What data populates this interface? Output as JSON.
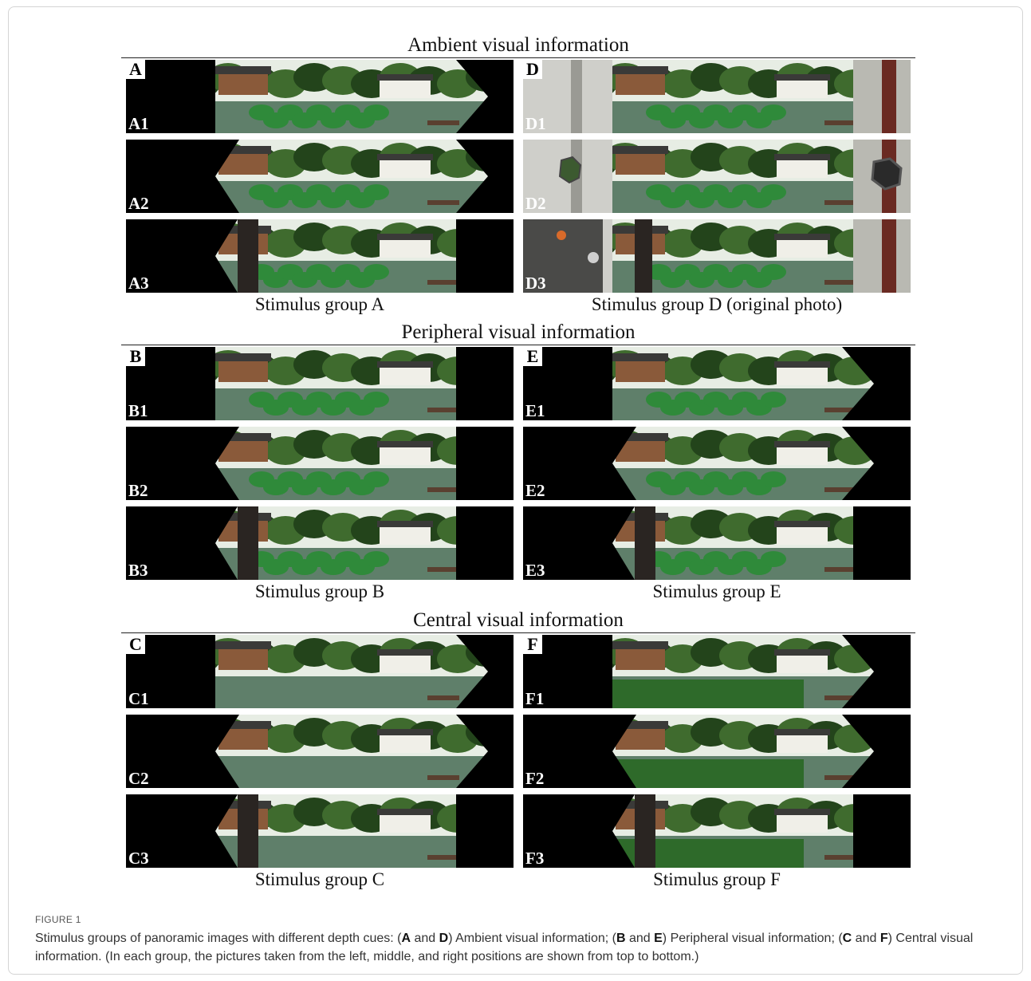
{
  "figure": {
    "label": "FIGURE 1",
    "caption_intro": "Stimulus groups of panoramic images with different depth cues: (",
    "caption_letter_a": "A",
    "caption_and1": " and ",
    "caption_letter_d": "D",
    "caption_part1": ") Ambient visual information; (",
    "caption_letter_b": "B",
    "caption_and2": " and ",
    "caption_letter_e": "E",
    "caption_part2": ") Peripheral visual information; (",
    "caption_letter_c": "C",
    "caption_and3": " and ",
    "caption_letter_f": "F",
    "caption_part3": ") Central visual information. (In each group, the pictures taken from the left, middle, and right positions are shown from top to bottom.)"
  },
  "sections": [
    {
      "title": "Ambient visual information",
      "left_caption": "Stimulus group A",
      "right_caption": "Stimulus group D (original photo)",
      "left_letter": "A",
      "right_letter": "D",
      "left_panels": [
        "A1",
        "A2",
        "A3"
      ],
      "right_panels": [
        "D1",
        "D2",
        "D3"
      ]
    },
    {
      "title": "Peripheral visual information",
      "left_caption": "Stimulus group B",
      "right_caption": "Stimulus group E",
      "left_letter": "B",
      "right_letter": "E",
      "left_panels": [
        "B1",
        "B2",
        "B3"
      ],
      "right_panels": [
        "E1",
        "E2",
        "E3"
      ]
    },
    {
      "title": "Central visual information",
      "left_caption": "Stimulus group C",
      "right_caption": "Stimulus group F",
      "left_letter": "C",
      "right_letter": "F",
      "left_panels": [
        "C1",
        "C2",
        "C3"
      ],
      "right_panels": [
        "F1",
        "F2",
        "F3"
      ]
    }
  ],
  "colors": {
    "sky": "#e7ede4",
    "foliage": "#3f6b2e",
    "foliage_dark": "#23441b",
    "water": "#5f7f6a",
    "lotus": "#2f8a3a",
    "building": "#f0efe8",
    "roof": "#3a3a38",
    "pillar": "#2a2522",
    "wall": "#cfcfca"
  }
}
